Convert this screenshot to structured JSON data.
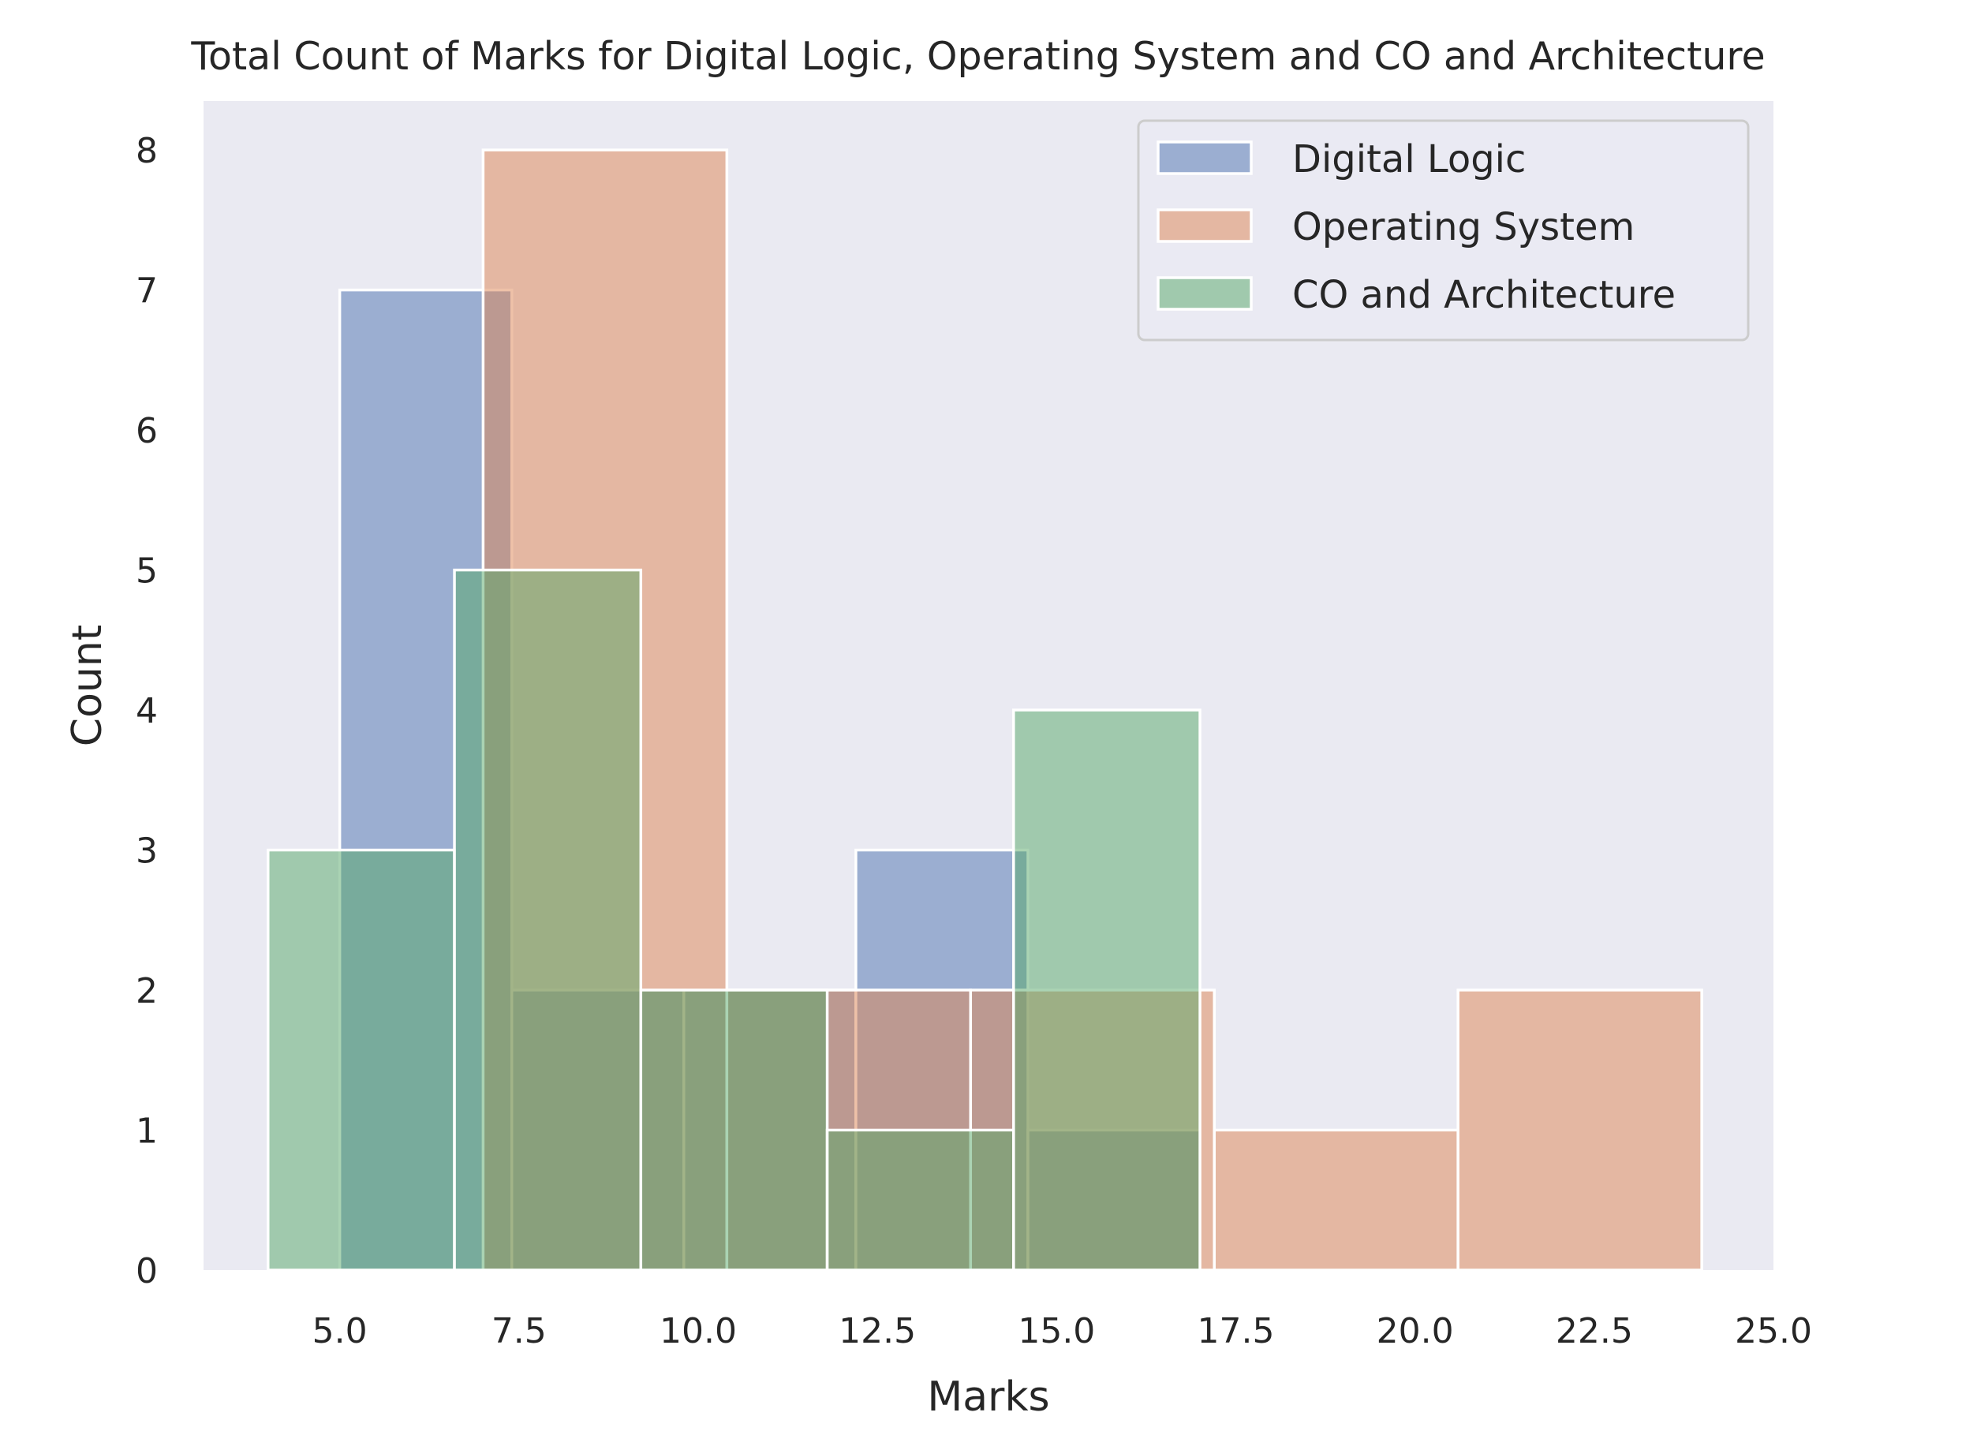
{
  "chart_data": {
    "type": "bar",
    "title": "Total Count of Marks for Digital Logic, Operating System and CO and Architecture",
    "xlabel": "Marks",
    "ylabel": "Count",
    "xlim": [
      3.1,
      25.0
    ],
    "ylim": [
      0,
      8.35
    ],
    "xticks": [
      "5.0",
      "7.5",
      "10.0",
      "12.5",
      "15.0",
      "17.5",
      "20.0",
      "22.5",
      "25.0"
    ],
    "yticks": [
      "0",
      "1",
      "2",
      "3",
      "4",
      "5",
      "6",
      "7",
      "8"
    ],
    "grid": false,
    "legend": "top-right",
    "series": [
      {
        "name": "Digital Logic",
        "color": "#4c72b0",
        "bins": [
          {
            "x0": 5.0,
            "x1": 7.4,
            "count": 7
          },
          {
            "x0": 7.4,
            "x1": 9.8,
            "count": 2
          },
          {
            "x0": 9.8,
            "x1": 12.2,
            "count": 2
          },
          {
            "x0": 12.2,
            "x1": 14.6,
            "count": 3
          },
          {
            "x0": 14.6,
            "x1": 17.0,
            "count": 1
          }
        ]
      },
      {
        "name": "Operating System",
        "color": "#dd8452",
        "bins": [
          {
            "x0": 7.0,
            "x1": 10.4,
            "count": 8
          },
          {
            "x0": 10.4,
            "x1": 13.8,
            "count": 2
          },
          {
            "x0": 13.8,
            "x1": 17.2,
            "count": 2
          },
          {
            "x0": 17.2,
            "x1": 20.6,
            "count": 1
          },
          {
            "x0": 20.6,
            "x1": 24.0,
            "count": 2
          }
        ]
      },
      {
        "name": "CO and Architecture",
        "color": "#55a868",
        "bins": [
          {
            "x0": 4.0,
            "x1": 6.6,
            "count": 3
          },
          {
            "x0": 6.6,
            "x1": 9.2,
            "count": 5
          },
          {
            "x0": 9.2,
            "x1": 11.8,
            "count": 2
          },
          {
            "x0": 11.8,
            "x1": 14.4,
            "count": 1
          },
          {
            "x0": 14.4,
            "x1": 17.0,
            "count": 4
          }
        ]
      }
    ]
  }
}
